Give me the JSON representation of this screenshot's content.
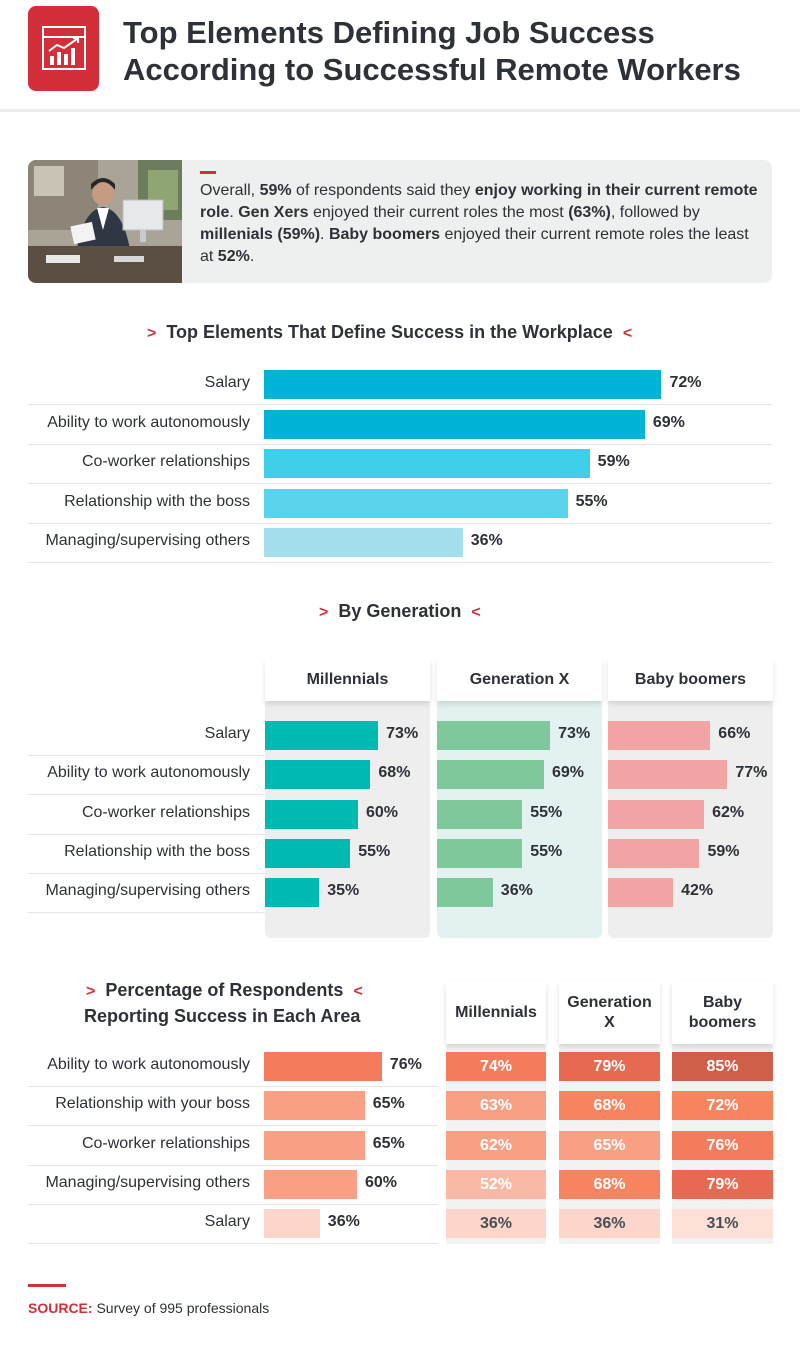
{
  "header": {
    "title_line1": "Top Elements Defining Job Success",
    "title_line2": "According to Successful Remote Workers",
    "icon": "growth-chart-icon",
    "brand_color": "#d32f3a"
  },
  "intro": {
    "photo": "person-at-desk-photo",
    "t1": "Overall, ",
    "t2": "59%",
    "t3": " of respondents said they ",
    "t4": "enjoy working in their current remote role",
    "t5": ". ",
    "t6": "Gen Xers",
    "t7": " enjoyed their current roles the most ",
    "t8": "(63%)",
    "t9": ", followed by ",
    "t10": "millenials (59%)",
    "t11": ". ",
    "t12": "Baby boomers",
    "t13": " enjoyed their current remote roles the least at ",
    "t14": "52%",
    "t15": "."
  },
  "chart_data": [
    {
      "type": "bar",
      "orientation": "horizontal",
      "title": "Top Elements That Define Success in the Workplace",
      "categories": [
        "Salary",
        "Ability to work autonomously",
        "Co-worker relationships",
        "Relationship with the boss",
        "Managing/supervising others"
      ],
      "values": [
        72,
        69,
        59,
        55,
        36
      ],
      "labels": [
        "72%",
        "69%",
        "59%",
        "55%",
        "36%"
      ],
      "colors": [
        "#00b4d8",
        "#00b4d8",
        "#3fcfe8",
        "#5cd3ec",
        "#a5dfeb"
      ],
      "xlim": [
        0,
        100
      ]
    },
    {
      "type": "bar",
      "orientation": "horizontal",
      "title": "By Generation",
      "categories": [
        "Salary",
        "Ability to work autonomously",
        "Co-worker relationships",
        "Relationship with the boss",
        "Managing/supervising others"
      ],
      "series": [
        {
          "name": "Millennials",
          "values": [
            73,
            68,
            60,
            55,
            35
          ],
          "labels": [
            "73%",
            "68%",
            "60%",
            "55%",
            "35%"
          ],
          "color": "#00b9b1"
        },
        {
          "name": "Generation X",
          "values": [
            73,
            69,
            55,
            55,
            36
          ],
          "labels": [
            "73%",
            "69%",
            "55%",
            "55%",
            "36%"
          ],
          "color": "#7fc89b"
        },
        {
          "name": "Baby boomers",
          "values": [
            66,
            77,
            62,
            59,
            42
          ],
          "labels": [
            "66%",
            "77%",
            "62%",
            "59%",
            "42%"
          ],
          "color": "#f0a4a4"
        }
      ],
      "xlim": [
        0,
        100
      ]
    },
    {
      "type": "bar",
      "orientation": "horizontal",
      "title_line1": "Percentage of Respondents",
      "title_line2": "Reporting Success in Each Area",
      "categories": [
        "Ability to work autonomously",
        "Relationship with your boss",
        "Co-worker relationships",
        "Managing/supervising others",
        "Salary"
      ],
      "values": [
        76,
        65,
        65,
        60,
        36
      ],
      "labels": [
        "76%",
        "65%",
        "65%",
        "60%",
        "36%"
      ],
      "colors": [
        "#f47c5d",
        "#f9a084",
        "#f9a084",
        "#f9a084",
        "#fcd6cb"
      ],
      "xlim": [
        0,
        100
      ]
    },
    {
      "type": "table",
      "columns": [
        "Millennials",
        "Generation X",
        "Baby boomers"
      ],
      "rows": [
        "Ability to work autonomously",
        "Relationship with your boss",
        "Co-worker relationships",
        "Managing/supervising others",
        "Salary"
      ],
      "cells": [
        [
          {
            "v": "74%",
            "c": "#f47c5d"
          },
          {
            "v": "79%",
            "c": "#e66a51"
          },
          {
            "v": "85%",
            "c": "#cf5f48"
          }
        ],
        [
          {
            "v": "63%",
            "c": "#f9a084"
          },
          {
            "v": "68%",
            "c": "#f6845f"
          },
          {
            "v": "72%",
            "c": "#f6845f"
          }
        ],
        [
          {
            "v": "62%",
            "c": "#f9a084"
          },
          {
            "v": "65%",
            "c": "#f9a084"
          },
          {
            "v": "76%",
            "c": "#f47c5d"
          }
        ],
        [
          {
            "v": "52%",
            "c": "#fbb9a5"
          },
          {
            "v": "68%",
            "c": "#f6845f"
          },
          {
            "v": "79%",
            "c": "#e66a51"
          }
        ],
        [
          {
            "v": "36%",
            "c": "#fcd6cb"
          },
          {
            "v": "36%",
            "c": "#fcd6cb"
          },
          {
            "v": "31%",
            "c": "#fde0d8"
          }
        ]
      ]
    }
  ],
  "source": {
    "label": "SOURCE:",
    "text": " Survey of 995 professionals"
  }
}
